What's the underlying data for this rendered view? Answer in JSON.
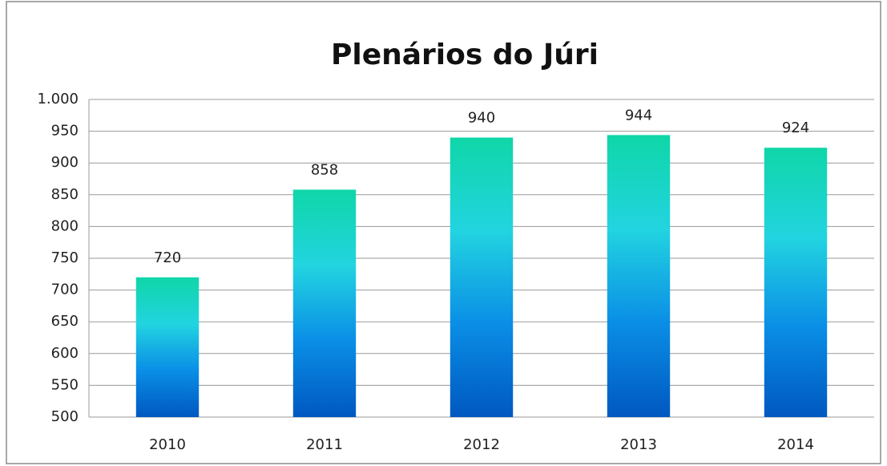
{
  "chart_data": {
    "type": "bar",
    "title": "Plenários do Júri",
    "categories": [
      "2010",
      "2011",
      "2012",
      "2013",
      "2014"
    ],
    "values": [
      720,
      858,
      940,
      944,
      924
    ],
    "colors": [
      "#0fd6a8",
      "#22d4e0",
      "#0a8ee6",
      "#0058c0"
    ],
    "ylim": [
      500,
      1000
    ],
    "yticks": [
      500,
      550,
      600,
      650,
      700,
      750,
      800,
      850,
      900,
      950,
      {
        "value": 1000,
        "label": "1.000"
      }
    ],
    "grid": true
  }
}
